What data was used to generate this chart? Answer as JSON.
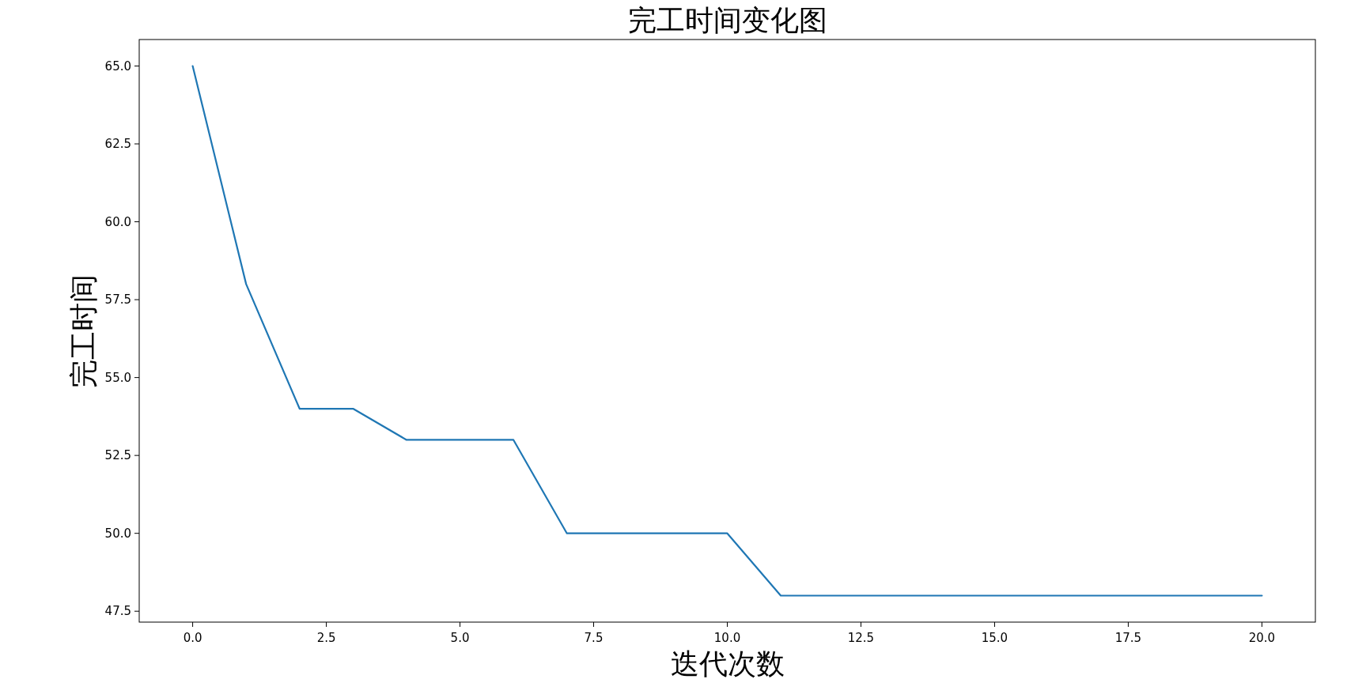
{
  "chart_data": {
    "type": "line",
    "title": "完工时间变化图",
    "xlabel": "迭代次数",
    "ylabel": "完工时间",
    "x": [
      0,
      1,
      2,
      3,
      4,
      5,
      6,
      7,
      8,
      9,
      10,
      11,
      12,
      13,
      14,
      15,
      16,
      17,
      18,
      19,
      20
    ],
    "series": [
      {
        "color": "#1f77b4",
        "values": [
          65,
          58,
          54,
          54,
          53,
          53,
          53,
          50,
          50,
          50,
          50,
          48,
          48,
          48,
          48,
          48,
          48,
          48,
          48,
          48,
          48
        ]
      }
    ],
    "xlim": [
      -1,
      21
    ],
    "ylim": [
      47.15,
      65.85
    ],
    "xticks": [
      {
        "value": 0,
        "label": "0.0"
      },
      2.5,
      {
        "value": 5,
        "label": "5.0"
      },
      7.5,
      {
        "value": 10,
        "label": "10.0"
      },
      12.5,
      {
        "value": 15,
        "label": "15.0"
      },
      17.5,
      {
        "value": 20,
        "label": "20.0"
      }
    ],
    "yticks": [
      47.5,
      {
        "value": 50,
        "label": "50.0"
      },
      52.5,
      {
        "value": 55,
        "label": "55.0"
      },
      57.5,
      {
        "value": 60,
        "label": "60.0"
      },
      62.5,
      {
        "value": 65,
        "label": "65.0"
      }
    ]
  }
}
